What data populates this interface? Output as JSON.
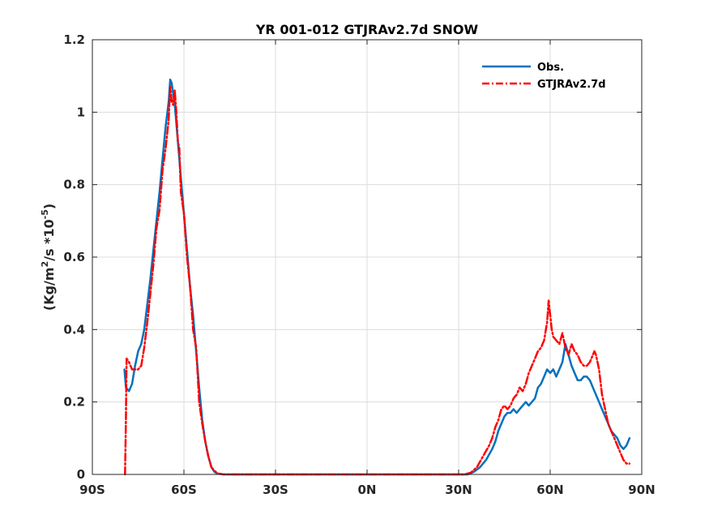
{
  "chart_data": {
    "type": "line",
    "title": "YR 001-012 GTJRAv2.7d SNOW",
    "ylabel_parts": {
      "base": "(Kg/m",
      "sup1": "2",
      "mid": "/s *10",
      "sup2": "-5",
      "end": ")"
    },
    "xlim": [
      -90,
      90
    ],
    "ylim": [
      0,
      1.2
    ],
    "xticks": [
      -90,
      -60,
      -30,
      0,
      30,
      60,
      90
    ],
    "xtick_labels": [
      "90S",
      "60S",
      "30S",
      "0N",
      "30N",
      "60N",
      "90N"
    ],
    "yticks": [
      0,
      0.2,
      0.4,
      0.6,
      0.8,
      1.0,
      1.2
    ],
    "ytick_labels": [
      "0",
      "0.2",
      "0.4",
      "0.6",
      "0.8",
      "1",
      "1.2"
    ],
    "grid": true,
    "legend_position": "top-right",
    "series": [
      {
        "name": "Obs.",
        "color": "#0072BD",
        "style": "solid",
        "points": [
          [
            -79.5,
            0.29
          ],
          [
            -79.0,
            0.24
          ],
          [
            -78.0,
            0.23
          ],
          [
            -77.0,
            0.25
          ],
          [
            -76.0,
            0.3
          ],
          [
            -75.0,
            0.34
          ],
          [
            -74.0,
            0.36
          ],
          [
            -73.0,
            0.4
          ],
          [
            -72.0,
            0.47
          ],
          [
            -71.0,
            0.54
          ],
          [
            -70.0,
            0.62
          ],
          [
            -69.0,
            0.7
          ],
          [
            -68.0,
            0.78
          ],
          [
            -67.0,
            0.87
          ],
          [
            -66.0,
            0.96
          ],
          [
            -65.0,
            1.03
          ],
          [
            -64.5,
            1.09
          ],
          [
            -64.0,
            1.08
          ],
          [
            -63.5,
            1.05
          ],
          [
            -63.0,
            1.02
          ],
          [
            -62.0,
            0.92
          ],
          [
            -61.0,
            0.82
          ],
          [
            -60.0,
            0.72
          ],
          [
            -59.0,
            0.62
          ],
          [
            -58.0,
            0.52
          ],
          [
            -57.0,
            0.44
          ],
          [
            -56.0,
            0.34
          ],
          [
            -55.0,
            0.24
          ],
          [
            -54.0,
            0.15
          ],
          [
            -53.0,
            0.09
          ],
          [
            -52.0,
            0.05
          ],
          [
            -51.0,
            0.02
          ],
          [
            -50.0,
            0.007
          ],
          [
            -49.0,
            0.002
          ],
          [
            -47.0,
            0.0
          ],
          [
            -40.0,
            0.0
          ],
          [
            -30.0,
            0.0
          ],
          [
            -20.0,
            0.0
          ],
          [
            -10.0,
            0.0
          ],
          [
            0.0,
            0.0
          ],
          [
            10.0,
            0.0
          ],
          [
            20.0,
            0.0
          ],
          [
            30.0,
            0.0
          ],
          [
            33.0,
            0.0
          ],
          [
            35.0,
            0.007
          ],
          [
            37.0,
            0.02
          ],
          [
            39.0,
            0.04
          ],
          [
            41.0,
            0.07
          ],
          [
            42.0,
            0.09
          ],
          [
            43.0,
            0.12
          ],
          [
            44.0,
            0.14
          ],
          [
            45.0,
            0.16
          ],
          [
            46.0,
            0.17
          ],
          [
            47.0,
            0.17
          ],
          [
            48.0,
            0.18
          ],
          [
            49.0,
            0.17
          ],
          [
            50.0,
            0.18
          ],
          [
            51.0,
            0.19
          ],
          [
            52.0,
            0.2
          ],
          [
            53.0,
            0.19
          ],
          [
            54.0,
            0.2
          ],
          [
            55.0,
            0.21
          ],
          [
            56.0,
            0.24
          ],
          [
            57.0,
            0.25
          ],
          [
            58.0,
            0.27
          ],
          [
            59.0,
            0.29
          ],
          [
            60.0,
            0.28
          ],
          [
            61.0,
            0.29
          ],
          [
            62.0,
            0.27
          ],
          [
            63.0,
            0.29
          ],
          [
            64.0,
            0.31
          ],
          [
            65.0,
            0.36
          ],
          [
            66.0,
            0.33
          ],
          [
            67.0,
            0.3
          ],
          [
            68.0,
            0.28
          ],
          [
            69.0,
            0.26
          ],
          [
            70.0,
            0.26
          ],
          [
            71.0,
            0.27
          ],
          [
            72.0,
            0.27
          ],
          [
            73.0,
            0.26
          ],
          [
            74.0,
            0.24
          ],
          [
            75.0,
            0.22
          ],
          [
            76.0,
            0.2
          ],
          [
            77.0,
            0.18
          ],
          [
            78.0,
            0.16
          ],
          [
            79.0,
            0.14
          ],
          [
            80.0,
            0.12
          ],
          [
            81.0,
            0.11
          ],
          [
            82.0,
            0.1
          ],
          [
            83.0,
            0.08
          ],
          [
            84.0,
            0.07
          ],
          [
            85.0,
            0.08
          ],
          [
            86.0,
            0.1
          ]
        ]
      },
      {
        "name": "GTJRAv2.7d",
        "color": "#FF0000",
        "style": "dashdot",
        "points": [
          [
            -79.3,
            0.0
          ],
          [
            -79.0,
            0.15
          ],
          [
            -78.8,
            0.32
          ],
          [
            -78.0,
            0.31
          ],
          [
            -77.0,
            0.29
          ],
          [
            -76.0,
            0.29
          ],
          [
            -75.0,
            0.29
          ],
          [
            -74.0,
            0.3
          ],
          [
            -73.0,
            0.35
          ],
          [
            -72.0,
            0.42
          ],
          [
            -71.0,
            0.5
          ],
          [
            -70.0,
            0.58
          ],
          [
            -69.0,
            0.68
          ],
          [
            -68.0,
            0.73
          ],
          [
            -67.0,
            0.84
          ],
          [
            -66.0,
            0.9
          ],
          [
            -65.0,
            0.98
          ],
          [
            -64.5,
            1.07
          ],
          [
            -64.0,
            1.03
          ],
          [
            -63.5,
            1.02
          ],
          [
            -63.0,
            1.06
          ],
          [
            -62.5,
            1.0
          ],
          [
            -62.0,
            0.92
          ],
          [
            -61.5,
            0.9
          ],
          [
            -61.0,
            0.78
          ],
          [
            -60.0,
            0.72
          ],
          [
            -59.0,
            0.6
          ],
          [
            -58.0,
            0.52
          ],
          [
            -57.0,
            0.4
          ],
          [
            -56.0,
            0.35
          ],
          [
            -55.0,
            0.2
          ],
          [
            -54.0,
            0.14
          ],
          [
            -53.0,
            0.09
          ],
          [
            -52.0,
            0.05
          ],
          [
            -51.0,
            0.02
          ],
          [
            -50.0,
            0.01
          ],
          [
            -49.0,
            0.003
          ],
          [
            -47.0,
            0.0
          ],
          [
            -40.0,
            0.0
          ],
          [
            -30.0,
            0.0
          ],
          [
            -20.0,
            0.0
          ],
          [
            -10.0,
            0.0
          ],
          [
            0.0,
            0.0
          ],
          [
            10.0,
            0.0
          ],
          [
            20.0,
            0.0
          ],
          [
            30.0,
            0.0
          ],
          [
            32.0,
            0.0
          ],
          [
            34.0,
            0.005
          ],
          [
            36.0,
            0.02
          ],
          [
            38.0,
            0.05
          ],
          [
            40.0,
            0.08
          ],
          [
            41.0,
            0.1
          ],
          [
            42.0,
            0.13
          ],
          [
            43.0,
            0.15
          ],
          [
            44.0,
            0.18
          ],
          [
            45.0,
            0.19
          ],
          [
            46.0,
            0.18
          ],
          [
            47.0,
            0.19
          ],
          [
            48.0,
            0.21
          ],
          [
            49.0,
            0.22
          ],
          [
            50.0,
            0.24
          ],
          [
            51.0,
            0.23
          ],
          [
            52.0,
            0.25
          ],
          [
            53.0,
            0.28
          ],
          [
            54.0,
            0.3
          ],
          [
            55.0,
            0.32
          ],
          [
            56.0,
            0.34
          ],
          [
            57.0,
            0.35
          ],
          [
            58.0,
            0.37
          ],
          [
            59.0,
            0.42
          ],
          [
            59.5,
            0.48
          ],
          [
            60.0,
            0.44
          ],
          [
            60.5,
            0.4
          ],
          [
            61.0,
            0.38
          ],
          [
            62.0,
            0.37
          ],
          [
            63.0,
            0.36
          ],
          [
            64.0,
            0.39
          ],
          [
            65.0,
            0.35
          ],
          [
            66.0,
            0.33
          ],
          [
            67.0,
            0.36
          ],
          [
            68.0,
            0.34
          ],
          [
            69.0,
            0.33
          ],
          [
            70.0,
            0.31
          ],
          [
            71.0,
            0.3
          ],
          [
            72.0,
            0.3
          ],
          [
            73.0,
            0.31
          ],
          [
            74.0,
            0.33
          ],
          [
            74.5,
            0.34
          ],
          [
            75.0,
            0.33
          ],
          [
            76.0,
            0.29
          ],
          [
            77.0,
            0.22
          ],
          [
            78.0,
            0.18
          ],
          [
            79.0,
            0.14
          ],
          [
            80.0,
            0.12
          ],
          [
            81.0,
            0.1
          ],
          [
            82.0,
            0.08
          ],
          [
            83.0,
            0.06
          ],
          [
            84.0,
            0.04
          ],
          [
            85.0,
            0.03
          ],
          [
            86.0,
            0.03
          ]
        ]
      }
    ]
  }
}
